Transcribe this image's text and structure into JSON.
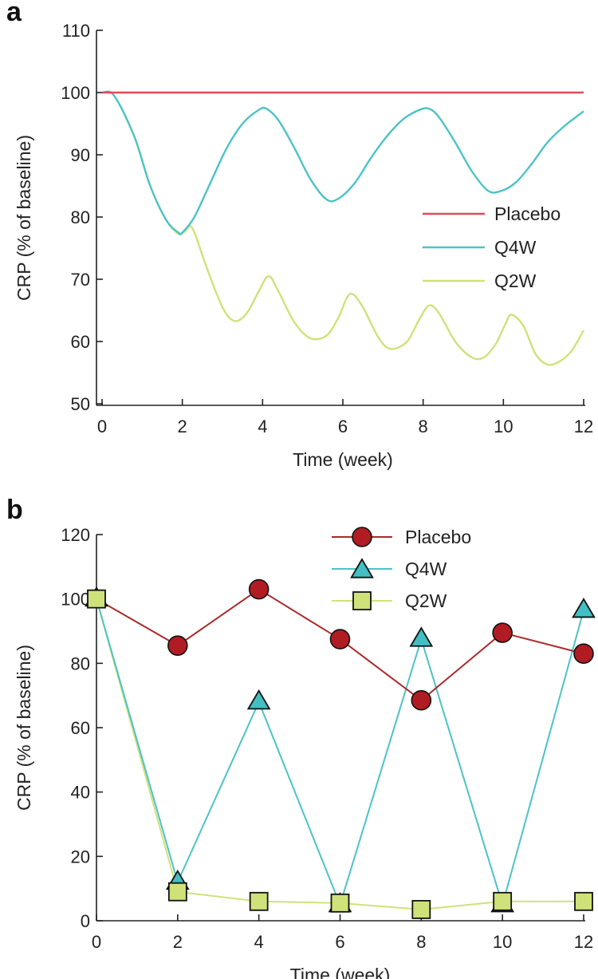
{
  "colors": {
    "placebo_line": "#e04a5a",
    "q4w": "#4cc3c6",
    "q2w": "#cfe27a",
    "placebo_marker_fill": "#b01c22",
    "placebo_marker_line": "#a92a2a",
    "q2w_marker_fill": "#cfe27a",
    "q4w_marker_fill": "#42bfc2"
  },
  "chart_data": [
    {
      "panel_label": "a",
      "type": "line",
      "xlabel": "Time (week)",
      "ylabel": "CRP (% of baseline)",
      "xlim": [
        0,
        12
      ],
      "ylim": [
        50,
        110
      ],
      "xticks": [
        0,
        2,
        4,
        6,
        8,
        10,
        12
      ],
      "yticks": [
        50,
        60,
        70,
        80,
        90,
        100,
        110
      ],
      "grid": false,
      "legend_position": "right-middle",
      "series": [
        {
          "name": "Placebo",
          "x": [
            0,
            12
          ],
          "y": [
            100,
            100
          ]
        },
        {
          "name": "Q4W",
          "x": [
            0,
            0.3,
            0.8,
            1.2,
            1.6,
            1.9,
            2.0,
            2.3,
            2.7,
            3.1,
            3.5,
            3.9,
            4.1,
            4.4,
            4.8,
            5.2,
            5.6,
            5.9,
            6.3,
            6.7,
            7.1,
            7.5,
            7.9,
            8.15,
            8.4,
            8.8,
            9.2,
            9.6,
            9.9,
            10.3,
            10.7,
            11.1,
            11.5,
            12
          ],
          "y": [
            100,
            99.5,
            93,
            85,
            79.5,
            77.5,
            77.5,
            80,
            85.5,
            91,
            95,
            97.2,
            97.4,
            95.5,
            91,
            86,
            82.8,
            83,
            85.5,
            89.5,
            93,
            95.7,
            97.2,
            97.4,
            96,
            92,
            87.5,
            84.3,
            84.1,
            85.5,
            88.5,
            92,
            94.5,
            97
          ]
        },
        {
          "name": "Q2W",
          "x": [
            0,
            0.3,
            0.8,
            1.2,
            1.6,
            1.9,
            2.05,
            2.25,
            2.6,
            3.0,
            3.3,
            3.6,
            3.9,
            4.15,
            4.4,
            4.8,
            5.2,
            5.6,
            5.9,
            6.1,
            6.25,
            6.5,
            6.9,
            7.2,
            7.6,
            7.9,
            8.15,
            8.4,
            8.8,
            9.2,
            9.5,
            9.8,
            10.05,
            10.2,
            10.5,
            10.8,
            11.1,
            11.4,
            11.7,
            12
          ],
          "y": [
            100,
            99.5,
            93,
            85,
            79.5,
            77.3,
            77.6,
            78.2,
            72,
            65.5,
            63.3,
            64.5,
            68,
            70.5,
            68,
            63,
            60.5,
            61,
            64,
            67,
            67.6,
            65.5,
            60.5,
            58.8,
            60,
            63.5,
            65.8,
            64.5,
            60,
            57.5,
            57.4,
            59.5,
            62.8,
            64.3,
            62.5,
            58,
            56.3,
            56.8,
            58.5,
            61.8
          ]
        }
      ]
    },
    {
      "panel_label": "b",
      "type": "line",
      "xlabel": "Time (week)",
      "ylabel": "CRP (% of baseline)",
      "xlim": [
        0,
        12
      ],
      "ylim": [
        0,
        120
      ],
      "xticks": [
        0,
        2,
        4,
        6,
        8,
        10,
        12
      ],
      "yticks": [
        0,
        20,
        40,
        60,
        80,
        100,
        120
      ],
      "grid": false,
      "legend_position": "top-right",
      "series": [
        {
          "name": "Placebo",
          "marker": "circle",
          "x": [
            0,
            2,
            4,
            6,
            8,
            10,
            12
          ],
          "y": [
            100,
            85.5,
            103,
            87.5,
            68.5,
            89.5,
            83
          ]
        },
        {
          "name": "Q4W",
          "marker": "triangle",
          "x": [
            0,
            2,
            4,
            6,
            8,
            10,
            12
          ],
          "y": [
            100,
            12,
            68,
            5,
            87.5,
            5,
            96.5
          ]
        },
        {
          "name": "Q2W",
          "marker": "square",
          "x": [
            0,
            2,
            4,
            6,
            8,
            10,
            12
          ],
          "y": [
            100,
            9,
            6,
            5.5,
            3.5,
            6,
            6
          ]
        }
      ]
    }
  ]
}
